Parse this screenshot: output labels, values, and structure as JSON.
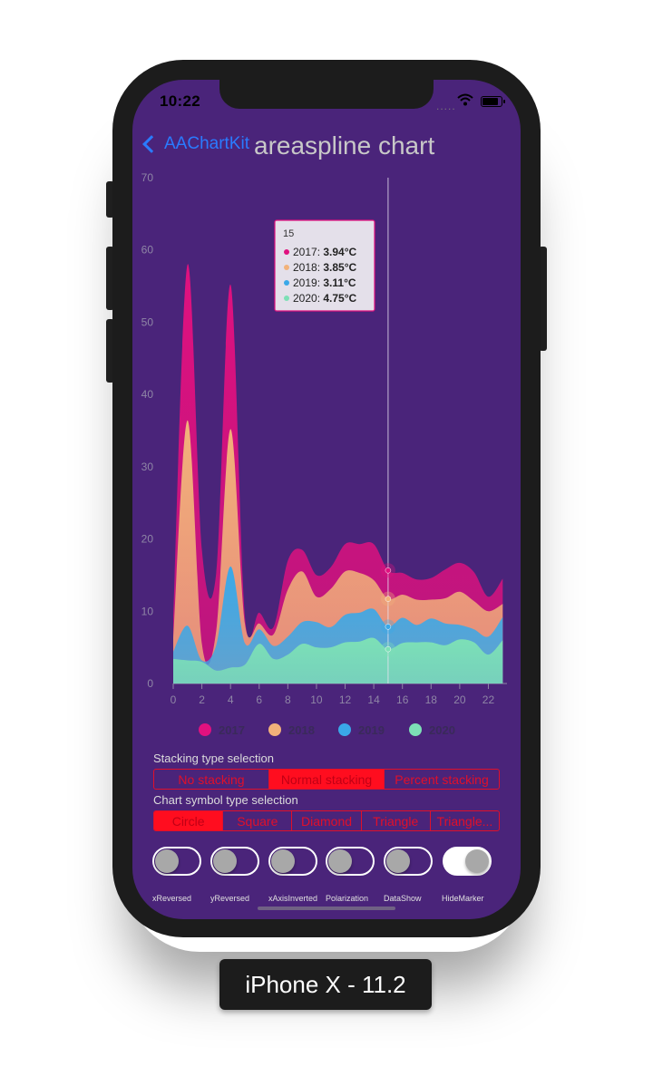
{
  "status_bar": {
    "time": "10:22",
    "signal": "....."
  },
  "nav": {
    "back_label": "AAChartKit",
    "title": "areaspline chart"
  },
  "chart_data": {
    "type": "area",
    "subtype": "areaspline, normal stacking",
    "x": [
      0,
      1,
      2,
      3,
      4,
      5,
      6,
      7,
      8,
      9,
      10,
      11,
      12,
      13,
      14,
      15,
      16,
      17,
      18,
      19,
      20,
      21,
      22,
      23
    ],
    "x_ticks": [
      "0",
      "2",
      "4",
      "6",
      "8",
      "10",
      "12",
      "14",
      "16",
      "18",
      "20",
      "22"
    ],
    "y_ticks": [
      "0",
      "10",
      "20",
      "30",
      "40",
      "50",
      "60",
      "70"
    ],
    "ylim": [
      0,
      70
    ],
    "series": [
      {
        "name": "2020",
        "color": "#7de0b6",
        "values": [
          3.4,
          3.2,
          3.0,
          1.8,
          2.2,
          2.6,
          5.5,
          3.4,
          4.0,
          5.5,
          5.0,
          5.0,
          5.7,
          5.8,
          6.3,
          4.75,
          5.6,
          5.7,
          5.7,
          5.3,
          6.1,
          5.7,
          4.0,
          6.0
        ]
      },
      {
        "name": "2019",
        "color": "#3aa8e8",
        "values": [
          1.0,
          4.8,
          0.2,
          3.5,
          14.0,
          3.0,
          2.0,
          1.8,
          2.5,
          3.0,
          3.5,
          2.8,
          3.8,
          4.0,
          4.0,
          3.11,
          3.5,
          2.4,
          3.3,
          3.0,
          2.0,
          1.8,
          2.5,
          3.2
        ]
      },
      {
        "name": "2018",
        "color": "#f2b27a",
        "values": [
          1.9,
          28.4,
          2.3,
          2.0,
          19.0,
          2.7,
          0.8,
          1.6,
          6.5,
          7.0,
          3.5,
          5.3,
          6.0,
          5.5,
          4.0,
          3.85,
          3.2,
          3.5,
          2.6,
          3.5,
          4.6,
          3.9,
          3.5,
          1.8
        ]
      },
      {
        "name": "2017",
        "color": "#e0117f",
        "values": [
          3.0,
          21.6,
          13.0,
          8.0,
          20.0,
          1.0,
          1.5,
          1.0,
          4.0,
          3.0,
          3.0,
          3.0,
          3.8,
          4.0,
          5.0,
          3.94,
          3.0,
          2.8,
          3.0,
          4.0,
          4.0,
          4.0,
          2.0,
          3.5
        ]
      }
    ],
    "crosshair_x": 15,
    "legend_position": "bottom"
  },
  "tooltip": {
    "header": "15",
    "rows": [
      {
        "label": "2017: ",
        "value": "3.94°C",
        "color": "#e0117f"
      },
      {
        "label": "2018: ",
        "value": "3.85°C",
        "color": "#f2b27a"
      },
      {
        "label": "2019: ",
        "value": "3.11°C",
        "color": "#3aa8e8"
      },
      {
        "label": "2020: ",
        "value": "4.75°C",
        "color": "#7de0b6"
      }
    ]
  },
  "legend": [
    {
      "label": "2017",
      "color": "#e0117f"
    },
    {
      "label": "2018",
      "color": "#f2b27a"
    },
    {
      "label": "2019",
      "color": "#3aa8e8"
    },
    {
      "label": "2020",
      "color": "#7de0b6"
    }
  ],
  "stacking": {
    "label": "Stacking type selection",
    "options": [
      "No stacking",
      "Normal stacking",
      "Percent stacking"
    ],
    "selected": 1
  },
  "symbol": {
    "label": "Chart symbol type selection",
    "options": [
      "Circle",
      "Square",
      "Diamond",
      "Triangle",
      "Triangle..."
    ],
    "selected": 0
  },
  "toggles": [
    {
      "label": "xReversed",
      "on": false
    },
    {
      "label": "yReversed",
      "on": false
    },
    {
      "label": "xAxisInverted",
      "on": false
    },
    {
      "label": "Polarization",
      "on": false
    },
    {
      "label": "DataShow",
      "on": false
    },
    {
      "label": "HideMarker",
      "on": true
    }
  ],
  "device": {
    "label": "iPhone X - 11.2"
  }
}
